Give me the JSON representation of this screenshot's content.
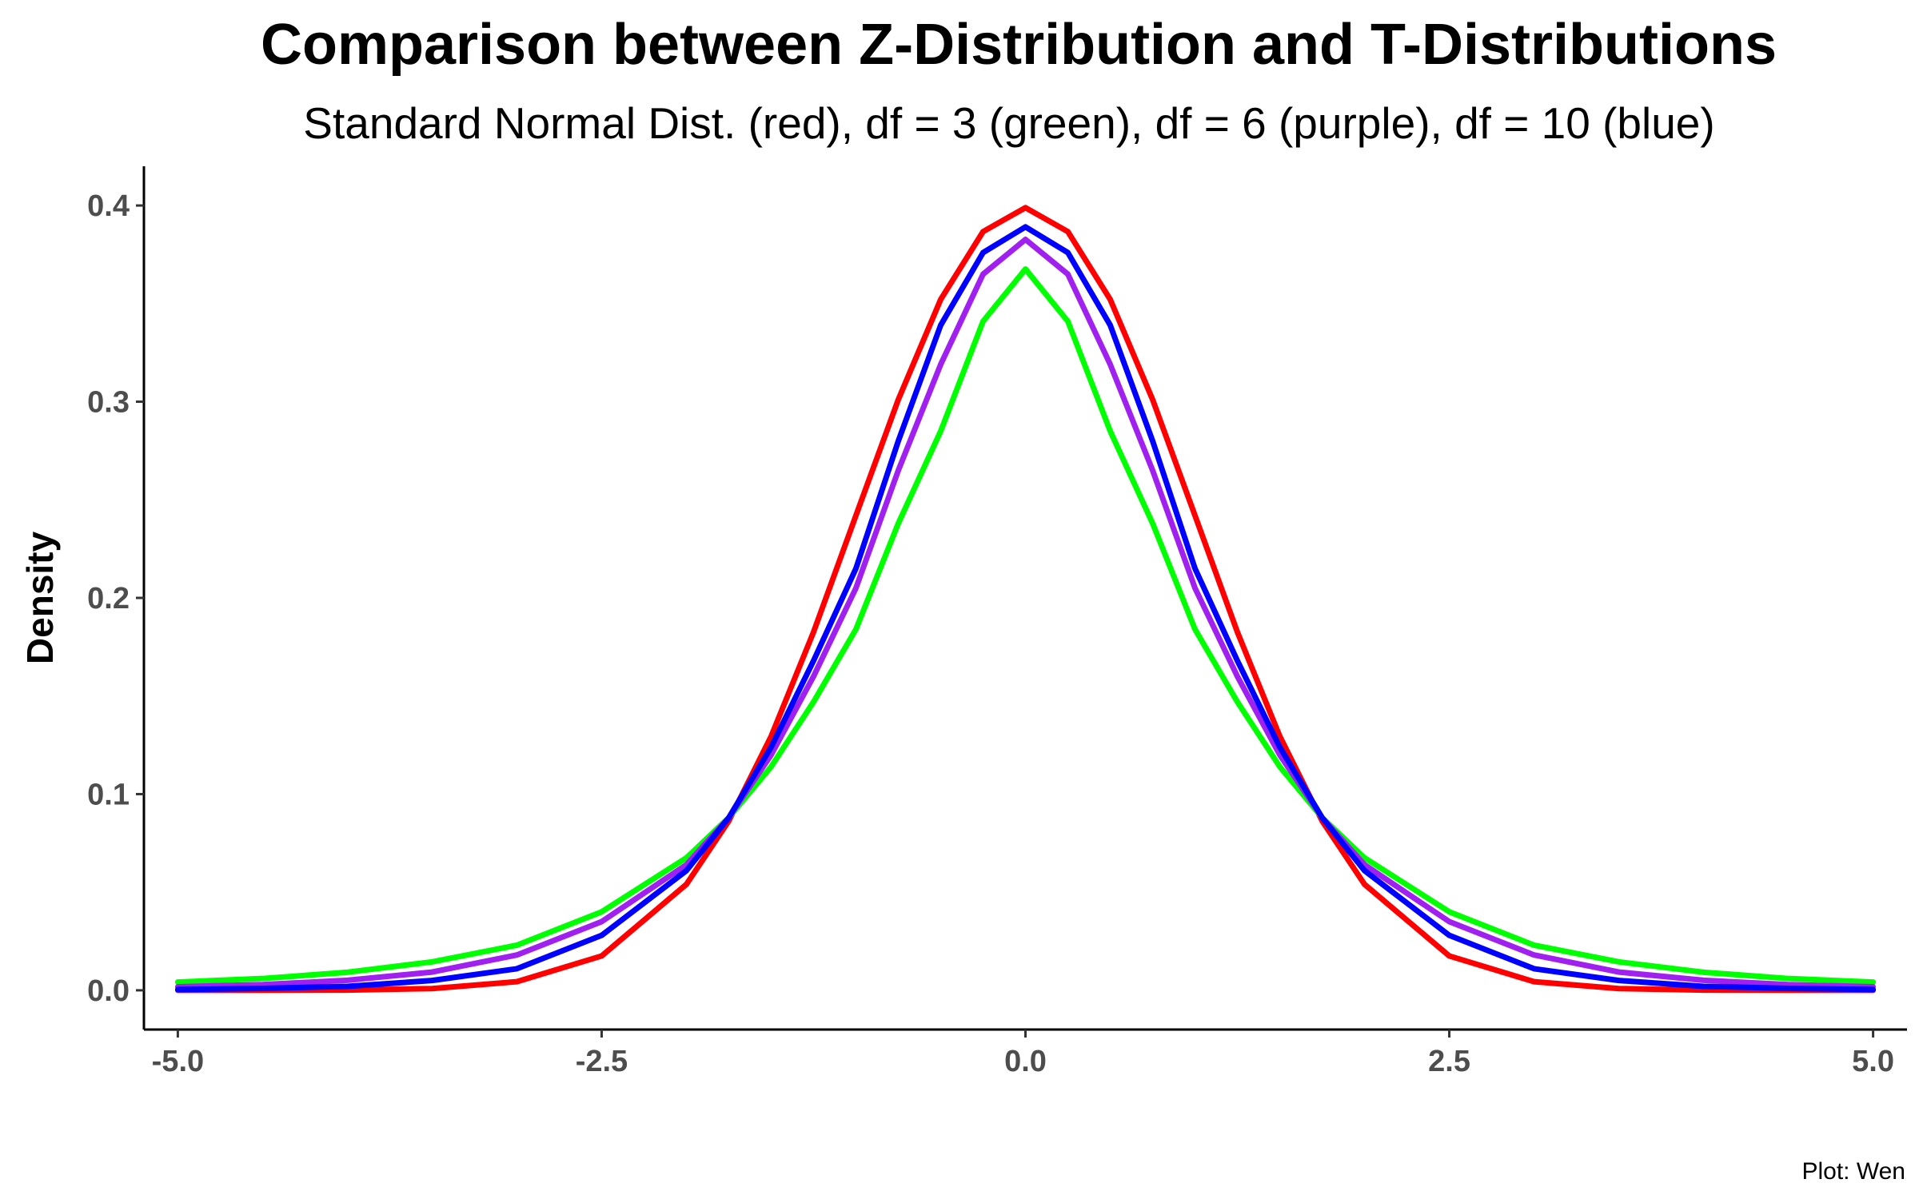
{
  "chart_data": {
    "type": "line",
    "title": "Comparison between Z-Distribution and T-Distributions",
    "subtitle": "Standard Normal Dist. (red), df = 3 (green), df = 6 (purple), df = 10 (blue)",
    "xlabel": "",
    "ylabel": "Density",
    "caption": "Plot: Wen",
    "xlim": [
      -5.2,
      5.2
    ],
    "ylim": [
      -0.02,
      0.42
    ],
    "grid": false,
    "legend": "none",
    "x_ticks": [
      {
        "value": -5,
        "label": "-5.0"
      },
      {
        "value": -2.5,
        "label": "-2.5"
      },
      {
        "value": 0,
        "label": "0.0"
      },
      {
        "value": 2.5,
        "label": "2.5"
      },
      {
        "value": 5,
        "label": "5.0"
      }
    ],
    "y_ticks": [
      {
        "value": 0,
        "label": "0.0"
      },
      {
        "value": 0.1,
        "label": "0.1"
      },
      {
        "value": 0.2,
        "label": "0.2"
      },
      {
        "value": 0.3,
        "label": "0.3"
      },
      {
        "value": 0.4,
        "label": "0.4"
      }
    ],
    "x": [
      -5,
      -4.5,
      -4,
      -3.5,
      -3,
      -2.5,
      -2,
      -1.75,
      -1.5,
      -1.25,
      -1,
      -0.75,
      -0.5,
      -0.25,
      0,
      0.25,
      0.5,
      0.75,
      1,
      1.25,
      1.5,
      1.75,
      2,
      2.5,
      3,
      3.5,
      4,
      4.5,
      5
    ],
    "series": [
      {
        "color": "#ff0000",
        "values": [
          0.0,
          0.0,
          0.0001,
          0.0009,
          0.0044,
          0.0175,
          0.054,
          0.0863,
          0.1295,
          0.1826,
          0.242,
          0.3011,
          0.3521,
          0.3867,
          0.3989,
          0.3867,
          0.3521,
          0.3011,
          0.242,
          0.1826,
          0.1295,
          0.0863,
          0.054,
          0.0175,
          0.0044,
          0.0009,
          0.0001,
          0.0,
          0.0
        ]
      },
      {
        "color": "#00ff00",
        "values": [
          0.0042,
          0.006,
          0.0092,
          0.0145,
          0.023,
          0.04,
          0.0675,
          0.088,
          0.114,
          0.147,
          0.184,
          0.238,
          0.285,
          0.341,
          0.3676,
          0.341,
          0.285,
          0.238,
          0.184,
          0.147,
          0.114,
          0.088,
          0.0675,
          0.04,
          0.023,
          0.0145,
          0.0092,
          0.006,
          0.0042
        ]
      },
      {
        "color": "#a020f0",
        "values": [
          0.0018,
          0.0029,
          0.0051,
          0.0093,
          0.018,
          0.035,
          0.064,
          0.088,
          0.12,
          0.16,
          0.205,
          0.265,
          0.319,
          0.365,
          0.3827,
          0.365,
          0.319,
          0.265,
          0.205,
          0.16,
          0.12,
          0.088,
          0.064,
          0.035,
          0.018,
          0.0093,
          0.0051,
          0.0029,
          0.0018
        ]
      },
      {
        "color": "#0000ff",
        "values": [
          0.0004,
          0.001,
          0.002,
          0.005,
          0.011,
          0.028,
          0.061,
          0.088,
          0.124,
          0.168,
          0.215,
          0.28,
          0.339,
          0.376,
          0.3891,
          0.376,
          0.339,
          0.28,
          0.215,
          0.168,
          0.124,
          0.088,
          0.061,
          0.028,
          0.011,
          0.005,
          0.002,
          0.001,
          0.0004
        ]
      }
    ]
  }
}
